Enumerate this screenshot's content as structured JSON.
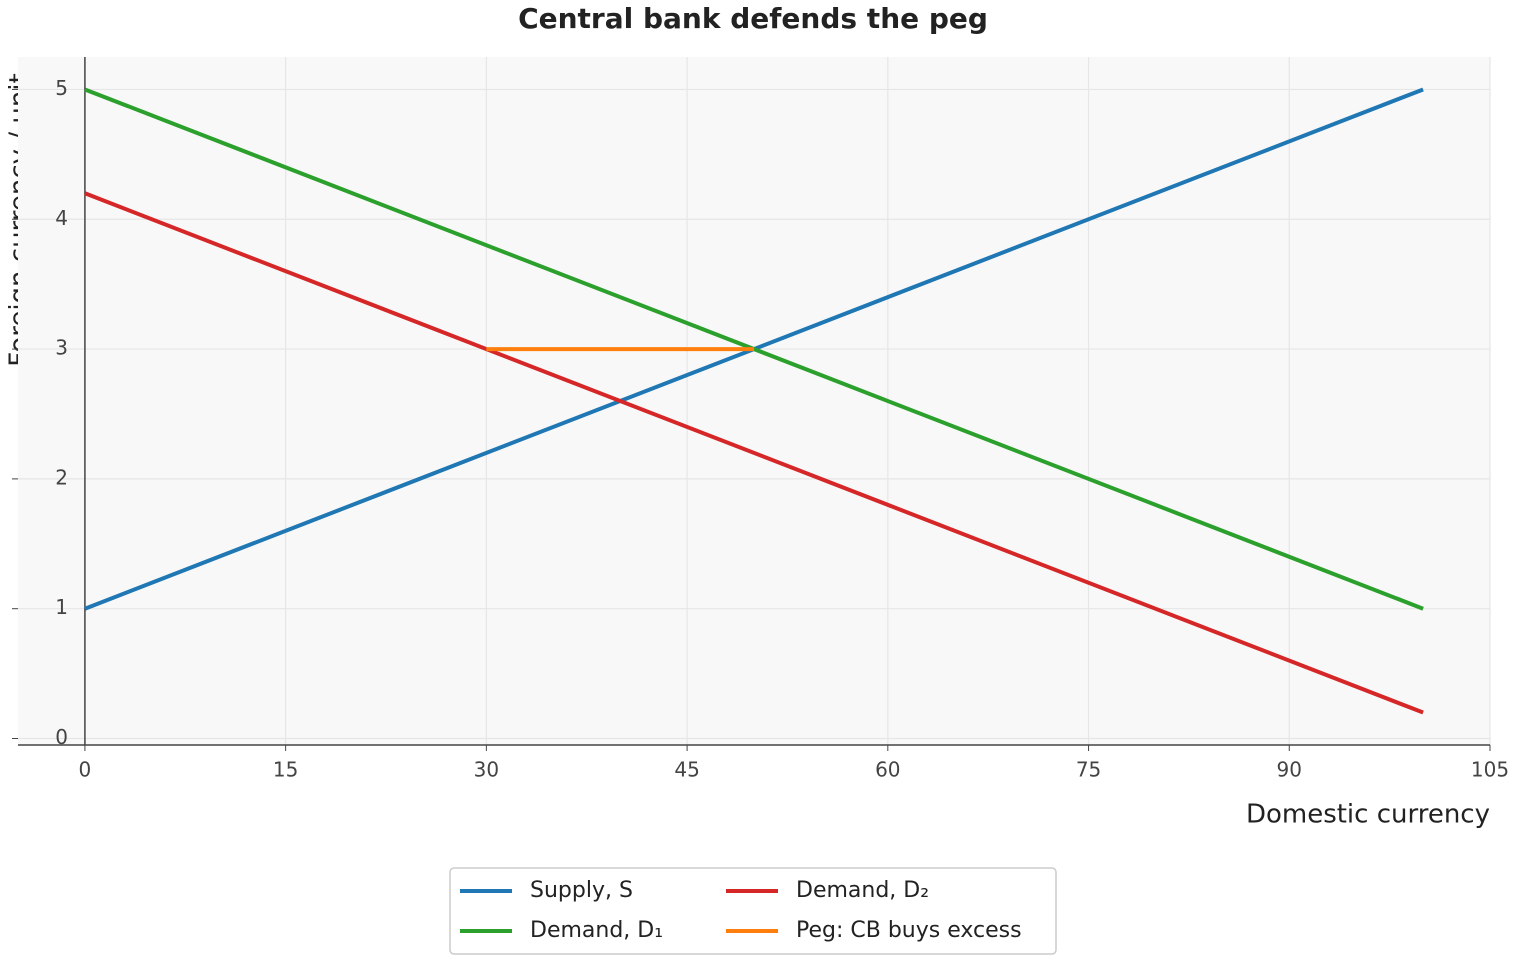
{
  "chart_data": {
    "type": "line",
    "title": "Central bank defends the peg",
    "xlabel": "Domestic currency",
    "ylabel": "Foreign currency / unit",
    "xlim": [
      -5,
      105
    ],
    "ylim": [
      -0.05,
      5.25
    ],
    "xticks": [
      0,
      15,
      30,
      45,
      60,
      75,
      90,
      105
    ],
    "yticks": [
      0,
      1,
      2,
      3,
      4,
      5
    ],
    "grid": true,
    "legend": "below",
    "series": [
      {
        "name": "Supply, S",
        "color": "#1f77b4",
        "x": [
          0,
          100
        ],
        "values": [
          1,
          5
        ]
      },
      {
        "name": "Demand, D₁",
        "color": "#2ca02c",
        "x": [
          0,
          100
        ],
        "values": [
          5,
          1
        ]
      },
      {
        "name": "Demand, D₂",
        "color": "#d62728",
        "x": [
          0,
          100
        ],
        "values": [
          4.2,
          0.2
        ]
      },
      {
        "name": "Peg: CB buys excess",
        "color": "#ff7f0e",
        "x": [
          30,
          50
        ],
        "values": [
          3,
          3
        ]
      }
    ]
  }
}
